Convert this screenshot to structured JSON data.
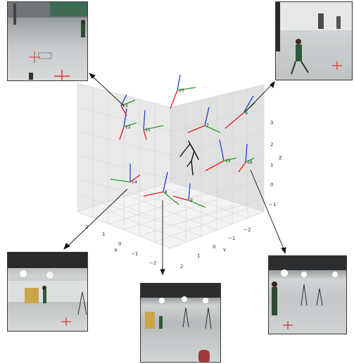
{
  "axes": {
    "x": {
      "label": "X",
      "ticks": [
        "2",
        "1",
        "0",
        "−1",
        "−2"
      ]
    },
    "y": {
      "label": "Y",
      "ticks": [
        "−2",
        "−1",
        "0",
        "1",
        "2"
      ]
    },
    "z": {
      "label": "Z",
      "ticks": [
        "3",
        "2",
        "1",
        "0",
        "−1"
      ]
    }
  },
  "cameras": [
    {
      "id": "6"
    },
    {
      "id": "7"
    },
    {
      "id": "8"
    },
    {
      "id": "9"
    },
    {
      "id": "10"
    },
    {
      "id": "11"
    },
    {
      "id": "12"
    },
    {
      "id": "13"
    },
    {
      "id": "14"
    },
    {
      "id": "15"
    },
    {
      "id": "16"
    }
  ],
  "views": [
    {
      "name": "view-top-left"
    },
    {
      "name": "view-top-right"
    },
    {
      "name": "view-bottom-left"
    },
    {
      "name": "view-bottom-center"
    },
    {
      "name": "view-bottom-right"
    }
  ],
  "colors": {
    "pane_light": "#f2f2f2",
    "pane_mid": "#e8e8e8",
    "pane_dark": "#dedede",
    "grid": "#c8c8c8",
    "axis_x": "#e31a1c",
    "axis_y": "#2ca02c",
    "axis_z": "#1f3fd6",
    "skeleton": "#111111"
  }
}
